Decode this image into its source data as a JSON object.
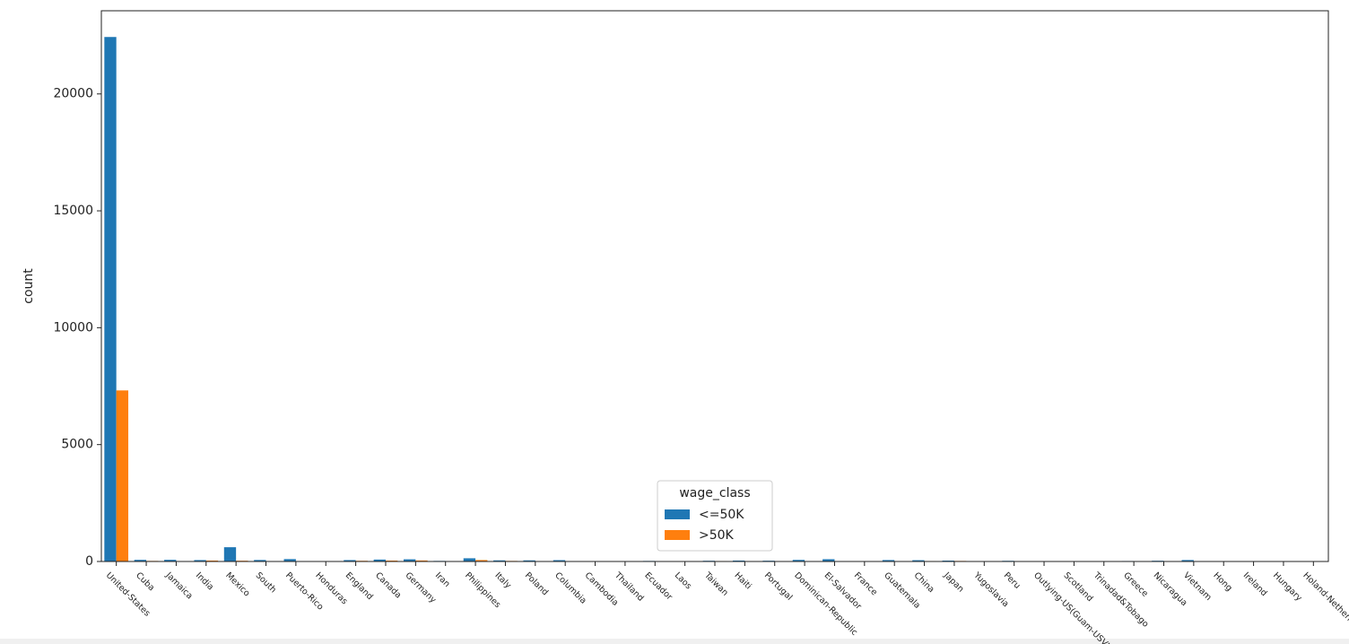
{
  "chart_data": {
    "type": "bar",
    "y_label": "count",
    "categories": [
      "United-States",
      "Cuba",
      "Jamaica",
      "India",
      "Mexico",
      "South",
      "Puerto-Rico",
      "Honduras",
      "England",
      "Canada",
      "Germany",
      "Iran",
      "Philippines",
      "Italy",
      "Poland",
      "Columbia",
      "Cambodia",
      "Thailand",
      "Ecuador",
      "Laos",
      "Taiwan",
      "Haiti",
      "Portugal",
      "Dominican-Republic",
      "El-Salvador",
      "France",
      "Guatemala",
      "China",
      "Japan",
      "Yugoslavia",
      "Peru",
      "Outlying-US(Guam-USVI-etc)",
      "Scotland",
      "Trinadad&Tobago",
      "Greece",
      "Nicaragua",
      "Vietnam",
      "Hong",
      "Ireland",
      "Hungary",
      "Holand-Netherlands"
    ],
    "series": [
      {
        "name": "<=50K",
        "color": "#1f77b4",
        "values": [
          22436,
          70,
          71,
          60,
          610,
          64,
          102,
          12,
          60,
          82,
          93,
          25,
          137,
          48,
          48,
          57,
          12,
          15,
          24,
          16,
          31,
          40,
          33,
          68,
          97,
          17,
          61,
          55,
          38,
          10,
          29,
          14,
          9,
          17,
          21,
          32,
          62,
          14,
          19,
          10,
          1
        ]
      },
      {
        "name": ">50K",
        "color": "#ff7f0e",
        "values": [
          7317,
          25,
          10,
          40,
          33,
          16,
          12,
          1,
          30,
          39,
          44,
          18,
          61,
          25,
          12,
          2,
          7,
          3,
          4,
          2,
          20,
          4,
          4,
          2,
          9,
          12,
          3,
          20,
          24,
          6,
          2,
          0,
          3,
          2,
          8,
          2,
          5,
          6,
          5,
          3,
          0
        ]
      }
    ],
    "legend_title": "wage_class",
    "legend_position": "lower center",
    "ylim": [
      0,
      23558
    ],
    "yticks": [
      0,
      5000,
      10000,
      15000,
      20000
    ]
  }
}
